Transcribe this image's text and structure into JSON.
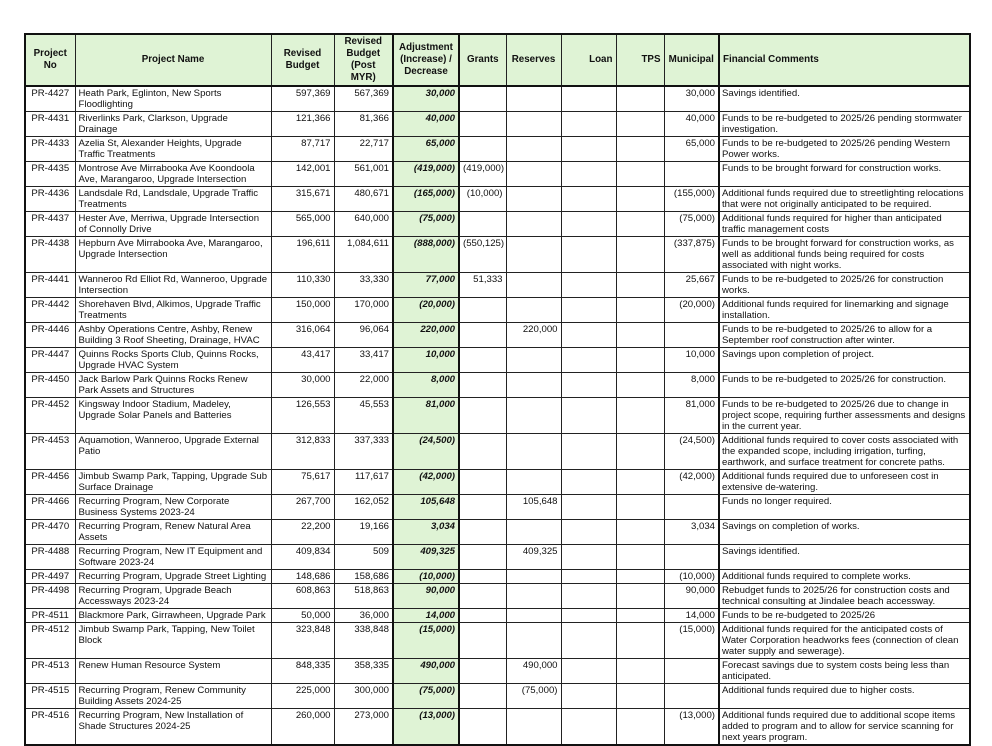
{
  "headers": {
    "project_no": "Project No",
    "project_name": "Project Name",
    "revised_budget": "Revised Budget",
    "revised_budget_post": "Revised Budget (Post MYR)",
    "adjustment": "Adjustment (Increase) / Decrease",
    "grants": "Grants",
    "reserves": "Reserves",
    "loan": "Loan",
    "tps": "TPS",
    "municipal": "Municipal",
    "comments": "Financial Comments"
  },
  "colors": {
    "header_bg": "#dff3d5",
    "adjustment_bg": "#dff3d5"
  },
  "rows": [
    {
      "no": "PR-4427",
      "name": "Heath Park, Eglinton, New Sports Floodlighting",
      "rb": "597,369",
      "rbp": "567,369",
      "adj": "30,000",
      "grants": "",
      "reserves": "",
      "loan": "",
      "tps": "",
      "mun": "30,000",
      "comment": "Savings identified."
    },
    {
      "no": "PR-4431",
      "name": "Riverlinks Park, Clarkson, Upgrade Drainage",
      "rb": "121,366",
      "rbp": "81,366",
      "adj": "40,000",
      "grants": "",
      "reserves": "",
      "loan": "",
      "tps": "",
      "mun": "40,000",
      "comment": "Funds to be re-budgeted to 2025/26 pending stormwater investigation."
    },
    {
      "no": "PR-4433",
      "name": "Azelia St, Alexander Heights, Upgrade Traffic Treatments",
      "rb": "87,717",
      "rbp": "22,717",
      "adj": "65,000",
      "grants": "",
      "reserves": "",
      "loan": "",
      "tps": "",
      "mun": "65,000",
      "comment": "Funds to be re-budgeted to 2025/26 pending Western Power works."
    },
    {
      "no": "PR-4435",
      "name": "Montrose Ave Mirrabooka Ave Koondoola Ave, Marangaroo, Upgrade Intersection",
      "rb": "142,001",
      "rbp": "561,001",
      "adj": "(419,000)",
      "grants": "(419,000)",
      "reserves": "",
      "loan": "",
      "tps": "",
      "mun": "",
      "comment": "Funds to be brought forward for construction works."
    },
    {
      "no": "PR-4436",
      "name": "Landsdale Rd, Landsdale, Upgrade Traffic Treatments",
      "rb": "315,671",
      "rbp": "480,671",
      "adj": "(165,000)",
      "grants": "(10,000)",
      "reserves": "",
      "loan": "",
      "tps": "",
      "mun": "(155,000)",
      "comment": "Additional funds required due to streetlighting relocations that were not originally anticipated to be required."
    },
    {
      "no": "PR-4437",
      "name": "Hester Ave, Merriwa, Upgrade Intersection of Connolly Drive",
      "rb": "565,000",
      "rbp": "640,000",
      "adj": "(75,000)",
      "grants": "",
      "reserves": "",
      "loan": "",
      "tps": "",
      "mun": "(75,000)",
      "comment": "Additional funds required for higher than anticipated traffic management costs"
    },
    {
      "no": "PR-4438",
      "name": "Hepburn Ave Mirrabooka Ave, Marangaroo, Upgrade Intersection",
      "rb": "196,611",
      "rbp": "1,084,611",
      "adj": "(888,000)",
      "grants": "(550,125)",
      "reserves": "",
      "loan": "",
      "tps": "",
      "mun": "(337,875)",
      "comment": "Funds to be brought forward for construction works, as well as additional funds being required for costs associated with night works."
    },
    {
      "no": "PR-4441",
      "name": "Wanneroo Rd Elliot Rd, Wanneroo, Upgrade Intersection",
      "rb": "110,330",
      "rbp": "33,330",
      "adj": "77,000",
      "grants": "51,333",
      "reserves": "",
      "loan": "",
      "tps": "",
      "mun": "25,667",
      "comment": "Funds to be re-budgeted to 2025/26 for construction works."
    },
    {
      "no": "PR-4442",
      "name": "Shorehaven Blvd, Alkimos, Upgrade Traffic Treatments",
      "rb": "150,000",
      "rbp": "170,000",
      "adj": "(20,000)",
      "grants": "",
      "reserves": "",
      "loan": "",
      "tps": "",
      "mun": "(20,000)",
      "comment": "Additional funds required for linemarking and signage installation."
    },
    {
      "no": "PR-4446",
      "name": "Ashby Operations Centre, Ashby, Renew Building 3 Roof Sheeting, Drainage, HVAC",
      "rb": "316,064",
      "rbp": "96,064",
      "adj": "220,000",
      "grants": "",
      "reserves": "220,000",
      "loan": "",
      "tps": "",
      "mun": "",
      "comment": "Funds to be re-budgeted to 2025/26  to allow for a September roof construction after winter."
    },
    {
      "no": "PR-4447",
      "name": "Quinns Rocks Sports Club, Quinns Rocks, Upgrade HVAC System",
      "rb": "43,417",
      "rbp": "33,417",
      "adj": "10,000",
      "grants": "",
      "reserves": "",
      "loan": "",
      "tps": "",
      "mun": "10,000",
      "comment": "Savings upon completion of project."
    },
    {
      "no": "PR-4450",
      "name": "Jack Barlow Park Quinns Rocks Renew Park Assets and Structures",
      "rb": "30,000",
      "rbp": "22,000",
      "adj": "8,000",
      "grants": "",
      "reserves": "",
      "loan": "",
      "tps": "",
      "mun": "8,000",
      "comment": "Funds to be re-budgeted to 2025/26 for construction."
    },
    {
      "no": "PR-4452",
      "name": "Kingsway Indoor Stadium, Madeley, Upgrade Solar Panels and Batteries",
      "rb": "126,553",
      "rbp": "45,553",
      "adj": "81,000",
      "grants": "",
      "reserves": "",
      "loan": "",
      "tps": "",
      "mun": "81,000",
      "comment": "Funds to be re-budgeted to 2025/26 due to change in project scope, requiring further assessments and designs in the current year."
    },
    {
      "no": "PR-4453",
      "name": "Aquamotion, Wanneroo, Upgrade External Patio",
      "rb": "312,833",
      "rbp": "337,333",
      "adj": "(24,500)",
      "grants": "",
      "reserves": "",
      "loan": "",
      "tps": "",
      "mun": "(24,500)",
      "comment": " Additional funds required to cover costs associated with the expanded scope, including irrigation, turfing, earthwork, and surface treatment for concrete paths."
    },
    {
      "no": "PR-4456",
      "name": "Jimbub Swamp Park, Tapping, Upgrade Sub Surface Drainage",
      "rb": "75,617",
      "rbp": "117,617",
      "adj": "(42,000)",
      "grants": "",
      "reserves": "",
      "loan": "",
      "tps": "",
      "mun": "(42,000)",
      "comment": "Additional funds required due to unforeseen cost in extensive de-watering."
    },
    {
      "no": "PR-4466",
      "name": "Recurring Program, New Corporate Business Systems 2023-24",
      "rb": "267,700",
      "rbp": "162,052",
      "adj": "105,648",
      "grants": "",
      "reserves": "105,648",
      "loan": "",
      "tps": "",
      "mun": "",
      "comment": "Funds no longer required."
    },
    {
      "no": "PR-4470",
      "name": "Recurring Program, Renew Natural Area Assets",
      "rb": "22,200",
      "rbp": "19,166",
      "adj": "3,034",
      "grants": "",
      "reserves": "",
      "loan": "",
      "tps": "",
      "mun": "3,034",
      "comment": "Savings on completion of works."
    },
    {
      "no": "PR-4488",
      "name": "Recurring Program, New IT Equipment and Software 2023-24",
      "rb": "409,834",
      "rbp": "509",
      "adj": "409,325",
      "grants": "",
      "reserves": "409,325",
      "loan": "",
      "tps": "",
      "mun": "",
      "comment": "Savings identified."
    },
    {
      "no": "PR-4497",
      "name": "Recurring Program, Upgrade Street Lighting",
      "rb": "148,686",
      "rbp": "158,686",
      "adj": "(10,000)",
      "grants": "",
      "reserves": "",
      "loan": "",
      "tps": "",
      "mun": "(10,000)",
      "comment": "Additional funds required to complete works."
    },
    {
      "no": "PR-4498",
      "name": "Recurring Program, Upgrade Beach Accessways 2023-24",
      "rb": "608,863",
      "rbp": "518,863",
      "adj": "90,000",
      "grants": "",
      "reserves": "",
      "loan": "",
      "tps": "",
      "mun": "90,000",
      "comment": "Rebudget funds to 2025/26 for construction costs and technical consulting at Jindalee beach accessway."
    },
    {
      "no": "PR-4511",
      "name": "Blackmore Park, Girrawheen, Upgrade Park",
      "rb": "50,000",
      "rbp": "36,000",
      "adj": "14,000",
      "grants": "",
      "reserves": "",
      "loan": "",
      "tps": "",
      "mun": "14,000",
      "comment": "Funds to be re-budgeted to 2025/26"
    },
    {
      "no": "PR-4512",
      "name": "Jimbub Swamp Park, Tapping, New Toilet Block",
      "rb": "323,848",
      "rbp": "338,848",
      "adj": "(15,000)",
      "grants": "",
      "reserves": "",
      "loan": "",
      "tps": "",
      "mun": "(15,000)",
      "comment": "Additional funds required  for the anticipated costs of Water Corporation headworks fees (connection of clean water supply and sewerage)."
    },
    {
      "no": "PR-4513",
      "name": "Renew Human Resource System",
      "rb": "848,335",
      "rbp": "358,335",
      "adj": "490,000",
      "grants": "",
      "reserves": "490,000",
      "loan": "",
      "tps": "",
      "mun": "",
      "comment": "Forecast savings due to system costs being less than anticipated."
    },
    {
      "no": "PR-4515",
      "name": "Recurring Program, Renew Community Building Assets 2024-25",
      "rb": "225,000",
      "rbp": "300,000",
      "adj": "(75,000)",
      "grants": "",
      "reserves": "(75,000)",
      "loan": "",
      "tps": "",
      "mun": "",
      "comment": "Additional funds required due to higher costs."
    },
    {
      "no": "PR-4516",
      "name": "Recurring Program, New Installation of Shade Structures 2024-25",
      "rb": "260,000",
      "rbp": "273,000",
      "adj": "(13,000)",
      "grants": "",
      "reserves": "",
      "loan": "",
      "tps": "",
      "mun": "(13,000)",
      "comment": "Additional funds required due to additional scope items added to program and to allow for service scanning for next years program."
    }
  ]
}
